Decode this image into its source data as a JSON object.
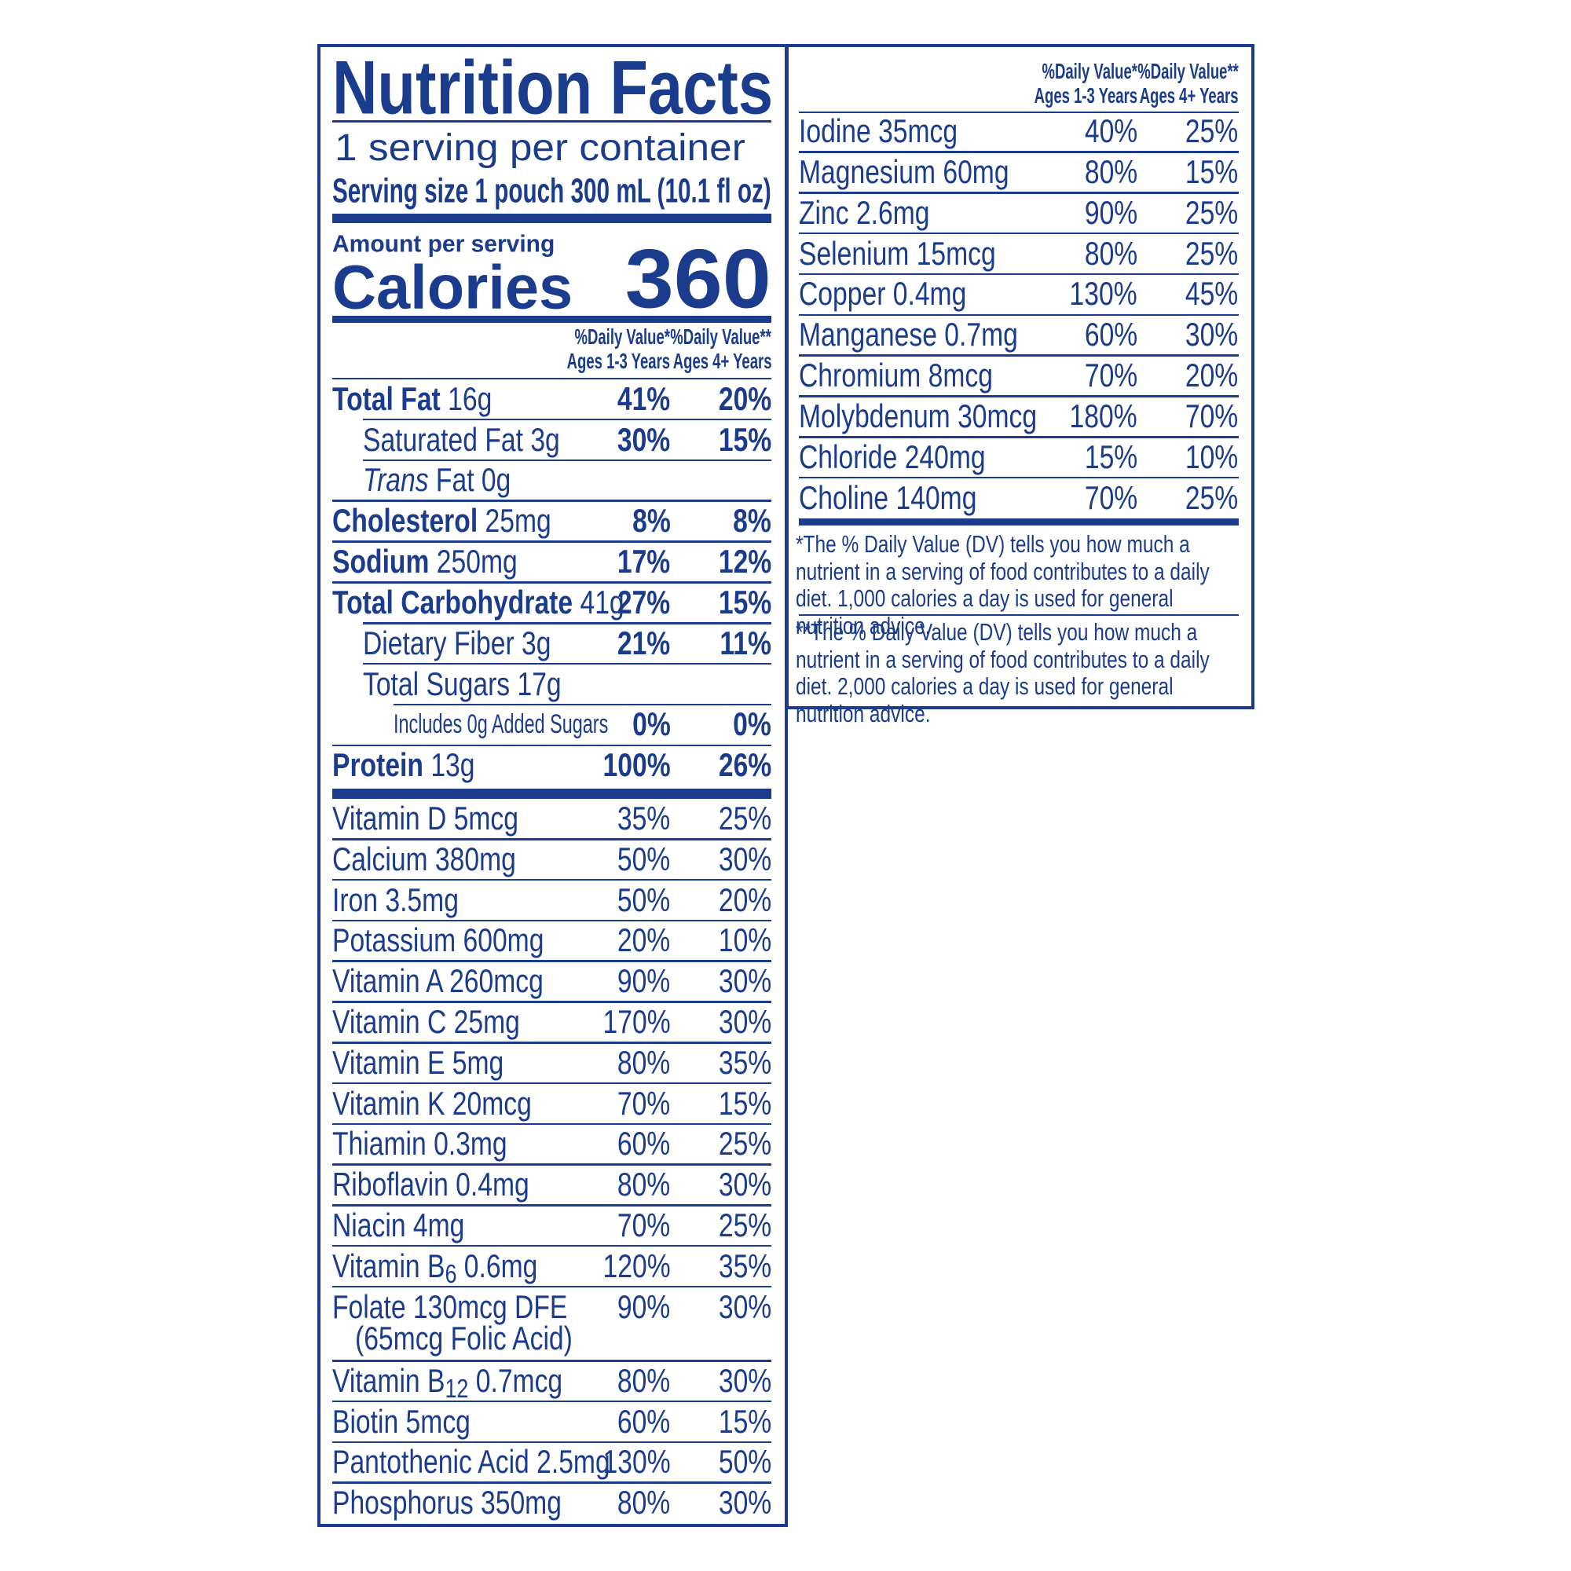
{
  "header": {
    "title": "Nutrition Facts",
    "servings": "1 serving per container",
    "serving_size": "Serving size 1 pouch 300 mL (10.1 fl oz)"
  },
  "calories": {
    "amount_label": "Amount per serving",
    "label": "Calories",
    "value": "360"
  },
  "columns": [
    {
      "line1": "%Daily Value*",
      "line2": "Ages 1-3 Years"
    },
    {
      "line1": "%Daily Value**",
      "line2": "Ages 4+ Years"
    }
  ],
  "nutrients": [
    {
      "name": "Total Fat",
      "amount": "16g",
      "dv1": "41%",
      "dv2": "20%"
    },
    {
      "name": "Saturated Fat 3g",
      "dv1": "30%",
      "dv2": "15%"
    },
    {
      "name_italic": "Trans",
      "name": "Fat 0g"
    },
    {
      "name": "Cholesterol",
      "amount": "25mg",
      "dv1": "8%",
      "dv2": "8%"
    },
    {
      "name": "Sodium",
      "amount": "250mg",
      "dv1": "17%",
      "dv2": "12%"
    },
    {
      "name": "Total Carbohydrate",
      "amount": "41g",
      "dv1": "27%",
      "dv2": "15%"
    },
    {
      "name": "Dietary Fiber 3g",
      "dv1": "21%",
      "dv2": "11%"
    },
    {
      "name": "Total Sugars 17g"
    },
    {
      "name": "Includes 0g Added Sugars",
      "dv1": "0%",
      "dv2": "0%"
    },
    {
      "name": "Protein",
      "amount": "13g",
      "dv1": "100%",
      "dv2": "26%"
    }
  ],
  "vitamins": [
    {
      "name": "Vitamin D 5mcg",
      "dv1": "35%",
      "dv2": "25%"
    },
    {
      "name": "Calcium 380mg",
      "dv1": "50%",
      "dv2": "30%"
    },
    {
      "name": "Iron 3.5mg",
      "dv1": "50%",
      "dv2": "20%"
    },
    {
      "name": "Potassium 600mg",
      "dv1": "20%",
      "dv2": "10%"
    },
    {
      "name": "Vitamin A 260mcg",
      "dv1": "90%",
      "dv2": "30%"
    },
    {
      "name": "Vitamin C 25mg",
      "dv1": "170%",
      "dv2": "30%"
    },
    {
      "name": "Vitamin E 5mg",
      "dv1": "80%",
      "dv2": "35%"
    },
    {
      "name": "Vitamin K 20mcg",
      "dv1": "70%",
      "dv2": "15%"
    },
    {
      "name": "Thiamin 0.3mg",
      "dv1": "60%",
      "dv2": "25%"
    },
    {
      "name": "Riboflavin 0.4mg",
      "dv1": "80%",
      "dv2": "30%"
    },
    {
      "name": "Niacin 4mg",
      "dv1": "70%",
      "dv2": "25%"
    },
    {
      "name": "Vitamin B",
      "sub": "6",
      "amount": "0.6mg",
      "dv1": "120%",
      "dv2": "35%"
    },
    {
      "name": "Folate 130mcg DFE",
      "note": "(65mcg Folic Acid)",
      "dv1": "90%",
      "dv2": "30%"
    },
    {
      "name": "Vitamin B",
      "sub": "12",
      "amount": "0.7mcg",
      "dv1": "80%",
      "dv2": "30%"
    },
    {
      "name": "Biotin 5mcg",
      "dv1": "60%",
      "dv2": "15%"
    },
    {
      "name": "Pantothenic Acid 2.5mg",
      "dv1": "130%",
      "dv2": "50%"
    },
    {
      "name": "Phosphorus 350mg",
      "dv1": "80%",
      "dv2": "30%"
    }
  ],
  "minerals": [
    {
      "name": "Iodine 35mcg",
      "dv1": "40%",
      "dv2": "25%"
    },
    {
      "name": "Magnesium 60mg",
      "dv1": "80%",
      "dv2": "15%"
    },
    {
      "name": "Zinc 2.6mg",
      "dv1": "90%",
      "dv2": "25%"
    },
    {
      "name": "Selenium 15mcg",
      "dv1": "80%",
      "dv2": "25%"
    },
    {
      "name": "Copper 0.4mg",
      "dv1": "130%",
      "dv2": "45%"
    },
    {
      "name": "Manganese 0.7mg",
      "dv1": "60%",
      "dv2": "30%"
    },
    {
      "name": "Chromium 8mcg",
      "dv1": "70%",
      "dv2": "20%"
    },
    {
      "name": "Molybdenum 30mcg",
      "dv1": "180%",
      "dv2": "70%"
    },
    {
      "name": "Chloride 240mg",
      "dv1": "15%",
      "dv2": "10%"
    },
    {
      "name": "Choline 140mg",
      "dv1": "70%",
      "dv2": "25%"
    }
  ],
  "footnotes": [
    "*The % Daily Value (DV) tells you how much a nutrient in a serving of food contributes to a daily diet. 1,000 calories a day is used for general nutrition advice.",
    "**The % Daily Value (DV) tells you how much a nutrient in a serving of food contributes to a daily diet. 2,000 calories a day is used for general nutrition advice."
  ]
}
